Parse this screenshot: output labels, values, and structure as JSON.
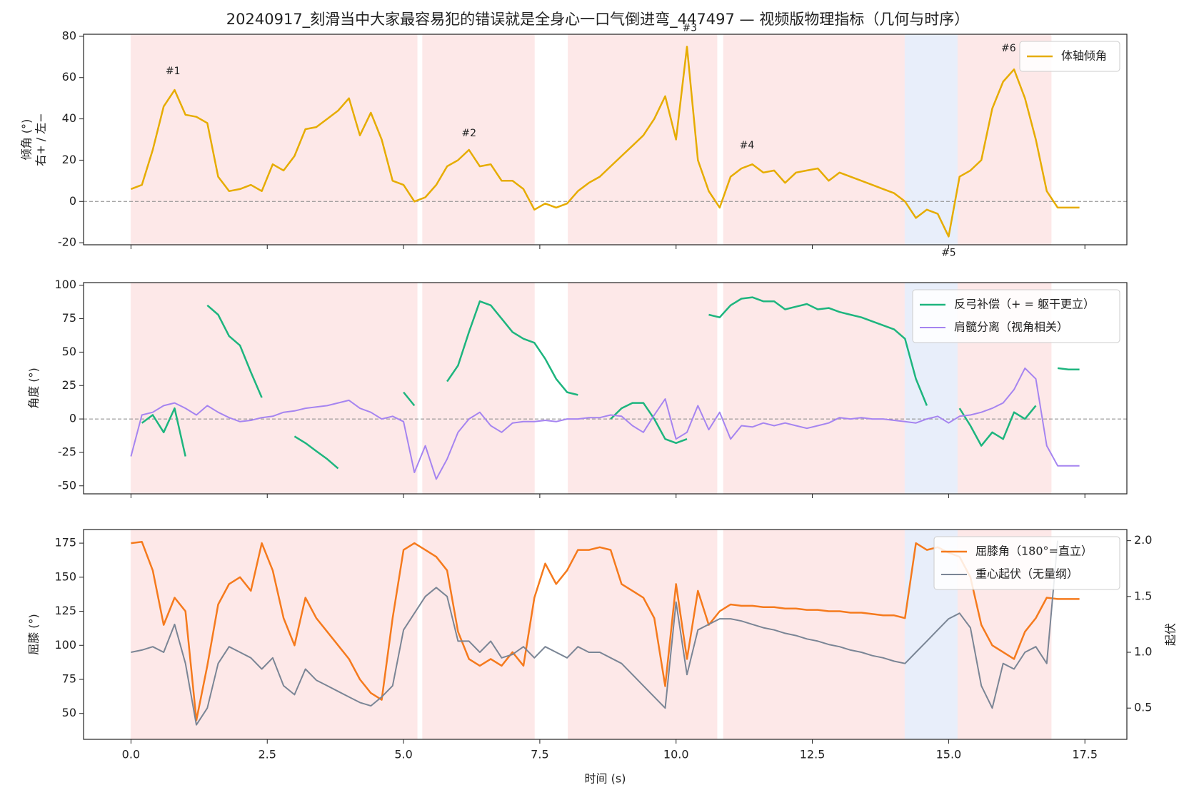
{
  "title": "20240917_刻滑当中大家最容易犯的错误就是全身心一口气倒进弯_447497 — 视频版物理指标（几何与时序）",
  "chart_data": [
    {
      "type": "line",
      "ylabel": [
        "倾角 (°)",
        "右+ / 左−"
      ],
      "xlim": [
        -0.87,
        18.27
      ],
      "ylim": [
        -21,
        81
      ],
      "yticks": [
        -20,
        0,
        20,
        40,
        60,
        80
      ],
      "xticks": [
        0,
        2.5,
        5,
        7.5,
        10,
        12.5,
        15,
        17.5
      ],
      "xticklabels": false,
      "zero_line": true,
      "legend": "upper right",
      "spans": [
        {
          "range": [
            0,
            5.25
          ],
          "color": "#fde8e8"
        },
        {
          "range": [
            5.35,
            7.4
          ],
          "color": "#fde8e8"
        },
        {
          "range": [
            8.02,
            10.75
          ],
          "color": "#fde8e8"
        },
        {
          "range": [
            10.87,
            14.2
          ],
          "color": "#fde8e8"
        },
        {
          "range": [
            14.2,
            15.17
          ],
          "color": "#e8eefa"
        },
        {
          "range": [
            15.17,
            16.88
          ],
          "color": "#fde8e8"
        }
      ],
      "annotations": [
        {
          "text": "#1",
          "x": 0.77,
          "y": 63
        },
        {
          "text": "#2",
          "x": 6.2,
          "y": 33
        },
        {
          "text": "#3",
          "x": 10.25,
          "y": 84
        },
        {
          "text": "#4",
          "x": 11.3,
          "y": 27
        },
        {
          "text": "#5",
          "x": 15.0,
          "y": -25
        },
        {
          "text": "#6",
          "x": 16.1,
          "y": 74
        }
      ],
      "x": [
        0,
        0.2,
        0.4,
        0.6,
        0.8,
        1,
        1.2,
        1.4,
        1.6,
        1.8,
        2,
        2.2,
        2.4,
        2.6,
        2.8,
        3,
        3.2,
        3.4,
        3.6,
        3.8,
        4,
        4.2,
        4.4,
        4.6,
        4.8,
        5,
        5.2,
        5.4,
        5.6,
        5.8,
        6,
        6.2,
        6.4,
        6.6,
        6.8,
        7,
        7.2,
        7.4,
        7.6,
        7.8,
        8,
        8.2,
        8.4,
        8.6,
        8.8,
        9,
        9.2,
        9.4,
        9.6,
        9.8,
        10,
        10.2,
        10.4,
        10.6,
        10.8,
        11,
        11.2,
        11.4,
        11.6,
        11.8,
        12,
        12.2,
        12.4,
        12.6,
        12.8,
        13,
        13.2,
        13.4,
        13.6,
        13.8,
        14,
        14.2,
        14.4,
        14.6,
        14.8,
        15,
        15.2,
        15.4,
        15.6,
        15.8,
        16,
        16.2,
        16.4,
        16.6,
        16.8,
        17,
        17.2,
        17.4
      ],
      "series": [
        {
          "name": "体轴倾角",
          "color": "#e6ac00",
          "width": 2.5,
          "values": [
            6,
            8,
            25,
            46,
            54,
            42,
            41,
            38,
            12,
            5,
            6,
            8,
            5,
            18,
            15,
            22,
            35,
            36,
            40,
            44,
            50,
            32,
            43,
            30,
            10,
            8,
            0,
            2,
            8,
            17,
            20,
            25,
            17,
            18,
            10,
            10,
            6,
            -4,
            -1,
            -3,
            -1,
            5,
            9,
            12,
            17,
            22,
            27,
            32,
            40,
            51,
            30,
            75,
            20,
            5,
            -3,
            12,
            16,
            18,
            14,
            15,
            9,
            14,
            15,
            16,
            10,
            14,
            12,
            10,
            8,
            6,
            4,
            0,
            -8,
            -4,
            -6,
            -17,
            12,
            15,
            20,
            45,
            58,
            64,
            50,
            30,
            5,
            -3,
            -3,
            -3
          ]
        }
      ]
    },
    {
      "type": "line",
      "ylabel": [
        "角度 (°)"
      ],
      "xlim": [
        -0.87,
        18.27
      ],
      "ylim": [
        -56,
        102
      ],
      "yticks": [
        -50,
        -25,
        0,
        25,
        50,
        75,
        100
      ],
      "xticks": [
        0,
        2.5,
        5,
        7.5,
        10,
        12.5,
        15,
        17.5
      ],
      "xticklabels": false,
      "zero_line": true,
      "legend": "upper right",
      "spans": [
        {
          "range": [
            0,
            5.25
          ],
          "color": "#fde8e8"
        },
        {
          "range": [
            5.35,
            7.4
          ],
          "color": "#fde8e8"
        },
        {
          "range": [
            8.02,
            10.75
          ],
          "color": "#fde8e8"
        },
        {
          "range": [
            10.87,
            14.2
          ],
          "color": "#fde8e8"
        },
        {
          "range": [
            14.2,
            15.17
          ],
          "color": "#e8eefa"
        },
        {
          "range": [
            15.17,
            16.88
          ],
          "color": "#fde8e8"
        }
      ],
      "x": [
        0,
        0.2,
        0.4,
        0.6,
        0.8,
        1,
        1.2,
        1.4,
        1.6,
        1.8,
        2,
        2.2,
        2.4,
        2.6,
        2.8,
        3,
        3.2,
        3.4,
        3.6,
        3.8,
        4,
        4.2,
        4.4,
        4.6,
        4.8,
        5,
        5.2,
        5.4,
        5.6,
        5.8,
        6,
        6.2,
        6.4,
        6.6,
        6.8,
        7,
        7.2,
        7.4,
        7.6,
        7.8,
        8,
        8.2,
        8.4,
        8.6,
        8.8,
        9,
        9.2,
        9.4,
        9.6,
        9.8,
        10,
        10.2,
        10.4,
        10.6,
        10.8,
        11,
        11.2,
        11.4,
        11.6,
        11.8,
        12,
        12.2,
        12.4,
        12.6,
        12.8,
        13,
        13.2,
        13.4,
        13.6,
        13.8,
        14,
        14.2,
        14.4,
        14.6,
        14.8,
        15,
        15.2,
        15.4,
        15.6,
        15.8,
        16,
        16.2,
        16.4,
        16.6,
        16.8,
        17,
        17.2,
        17.4
      ],
      "series": [
        {
          "name": "反弓补偿（+ = 躯干更立）",
          "color": "#1db57e",
          "width": 2.5,
          "values": [
            null,
            -3,
            3,
            -10,
            8,
            -28,
            null,
            85,
            78,
            62,
            55,
            35,
            16,
            null,
            null,
            -13,
            -18,
            -24,
            -30,
            -37,
            null,
            null,
            null,
            null,
            null,
            20,
            10,
            null,
            null,
            28,
            40,
            65,
            88,
            85,
            75,
            65,
            60,
            57,
            45,
            30,
            20,
            18,
            null,
            null,
            0,
            8,
            12,
            12,
            0,
            -15,
            -18,
            -15,
            null,
            78,
            76,
            85,
            90,
            91,
            88,
            88,
            82,
            84,
            86,
            82,
            83,
            80,
            78,
            76,
            73,
            70,
            67,
            60,
            30,
            10,
            null,
            null,
            8,
            -5,
            -20,
            -10,
            -15,
            5,
            0,
            10,
            null,
            38,
            37,
            37
          ]
        },
        {
          "name": "肩髋分离（视角相关）",
          "color": "#a584f0",
          "width": 2,
          "values": [
            -28,
            3,
            5,
            10,
            12,
            8,
            3,
            10,
            5,
            1,
            -2,
            -1,
            1,
            2,
            5,
            6,
            8,
            9,
            10,
            12,
            14,
            8,
            5,
            0,
            2,
            -2,
            -40,
            -20,
            -45,
            -30,
            -10,
            0,
            5,
            -5,
            -10,
            -3,
            -2,
            -2,
            -1,
            -2,
            0,
            0,
            1,
            1,
            3,
            2,
            -5,
            -10,
            3,
            15,
            -15,
            -10,
            10,
            -8,
            5,
            -15,
            -5,
            -6,
            -3,
            -5,
            -3,
            -5,
            -7,
            -5,
            -3,
            1,
            0,
            1,
            0,
            0,
            -1,
            -2,
            -3,
            0,
            2,
            -3,
            2,
            3,
            5,
            8,
            12,
            22,
            38,
            30,
            -20,
            -35,
            -35,
            -35
          ]
        }
      ]
    },
    {
      "type": "line",
      "ylabel": [
        "屈膝 (°)"
      ],
      "y2label": "起伏",
      "xlabel": "时间 (s)",
      "xlim": [
        -0.87,
        18.27
      ],
      "ylim": [
        31,
        185
      ],
      "yticks": [
        50,
        75,
        100,
        125,
        150,
        175
      ],
      "y2lim": [
        0.22,
        2.1
      ],
      "y2ticks": [
        0.5,
        {
          "value": 1,
          "label": "1.0"
        },
        1.5,
        {
          "value": 2,
          "label": "2.0"
        }
      ],
      "xticks": [
        {
          "value": 0,
          "label": "0.0"
        },
        2.5,
        {
          "value": 5,
          "label": "5.0"
        },
        7.5,
        {
          "value": 10,
          "label": "10.0"
        },
        12.5,
        {
          "value": 15,
          "label": "15.0"
        },
        17.5
      ],
      "xticklabels": true,
      "legend": "upper right",
      "spans": [
        {
          "range": [
            0,
            5.25
          ],
          "color": "#fde8e8"
        },
        {
          "range": [
            5.35,
            7.4
          ],
          "color": "#fde8e8"
        },
        {
          "range": [
            8.02,
            10.75
          ],
          "color": "#fde8e8"
        },
        {
          "range": [
            10.87,
            14.2
          ],
          "color": "#fde8e8"
        },
        {
          "range": [
            14.2,
            15.17
          ],
          "color": "#e8eefa"
        },
        {
          "range": [
            15.17,
            16.88
          ],
          "color": "#fde8e8"
        }
      ],
      "x": [
        0,
        0.2,
        0.4,
        0.6,
        0.8,
        1,
        1.2,
        1.4,
        1.6,
        1.8,
        2,
        2.2,
        2.4,
        2.6,
        2.8,
        3,
        3.2,
        3.4,
        3.6,
        3.8,
        4,
        4.2,
        4.4,
        4.6,
        4.8,
        5,
        5.2,
        5.4,
        5.6,
        5.8,
        6,
        6.2,
        6.4,
        6.6,
        6.8,
        7,
        7.2,
        7.4,
        7.6,
        7.8,
        8,
        8.2,
        8.4,
        8.6,
        8.8,
        9,
        9.2,
        9.4,
        9.6,
        9.8,
        10,
        10.2,
        10.4,
        10.6,
        10.8,
        11,
        11.2,
        11.4,
        11.6,
        11.8,
        12,
        12.2,
        12.4,
        12.6,
        12.8,
        13,
        13.2,
        13.4,
        13.6,
        13.8,
        14,
        14.2,
        14.4,
        14.6,
        14.8,
        15,
        15.2,
        15.4,
        15.6,
        15.8,
        16,
        16.2,
        16.4,
        16.6,
        16.8,
        17,
        17.2,
        17.4
      ],
      "series": [
        {
          "name": "屈膝角（180°=直立）",
          "color": "#f57a1d",
          "width": 2.5,
          "values": [
            175,
            176,
            155,
            115,
            135,
            125,
            45,
            85,
            130,
            145,
            150,
            140,
            175,
            155,
            120,
            100,
            135,
            120,
            110,
            100,
            90,
            75,
            65,
            60,
            120,
            170,
            175,
            170,
            165,
            155,
            110,
            90,
            85,
            90,
            85,
            95,
            85,
            135,
            160,
            145,
            155,
            170,
            170,
            172,
            170,
            145,
            140,
            135,
            120,
            70,
            145,
            90,
            140,
            115,
            125,
            130,
            129,
            129,
            128,
            128,
            127,
            127,
            126,
            126,
            125,
            125,
            124,
            124,
            123,
            122,
            122,
            120,
            175,
            170,
            172,
            168,
            165,
            150,
            115,
            100,
            95,
            90,
            110,
            120,
            135,
            134,
            134,
            134
          ]
        },
        {
          "name": "重心起伏（无量纲）",
          "color": "#7a8595",
          "width": 2,
          "axis": "y2",
          "values": [
            1.0,
            1.02,
            1.05,
            1.0,
            1.25,
            0.9,
            0.35,
            0.5,
            0.9,
            1.05,
            1.0,
            0.95,
            0.85,
            0.95,
            0.7,
            0.62,
            0.85,
            0.75,
            0.7,
            0.65,
            0.6,
            0.55,
            0.52,
            0.6,
            0.7,
            1.2,
            1.35,
            1.5,
            1.58,
            1.5,
            1.1,
            1.1,
            1.0,
            1.1,
            0.95,
            0.98,
            1.05,
            0.95,
            1.05,
            1.0,
            0.95,
            1.05,
            1.0,
            1.0,
            0.95,
            0.9,
            0.8,
            0.7,
            0.6,
            0.5,
            1.45,
            0.8,
            1.2,
            1.25,
            1.3,
            1.3,
            1.28,
            1.25,
            1.22,
            1.2,
            1.17,
            1.15,
            1.12,
            1.1,
            1.07,
            1.05,
            1.02,
            1.0,
            0.97,
            0.95,
            0.92,
            0.9,
            1.0,
            1.1,
            1.2,
            1.3,
            1.35,
            1.22,
            0.7,
            0.5,
            0.9,
            0.85,
            1.0,
            1.05,
            0.9,
            2.0,
            null,
            null
          ]
        }
      ]
    }
  ]
}
